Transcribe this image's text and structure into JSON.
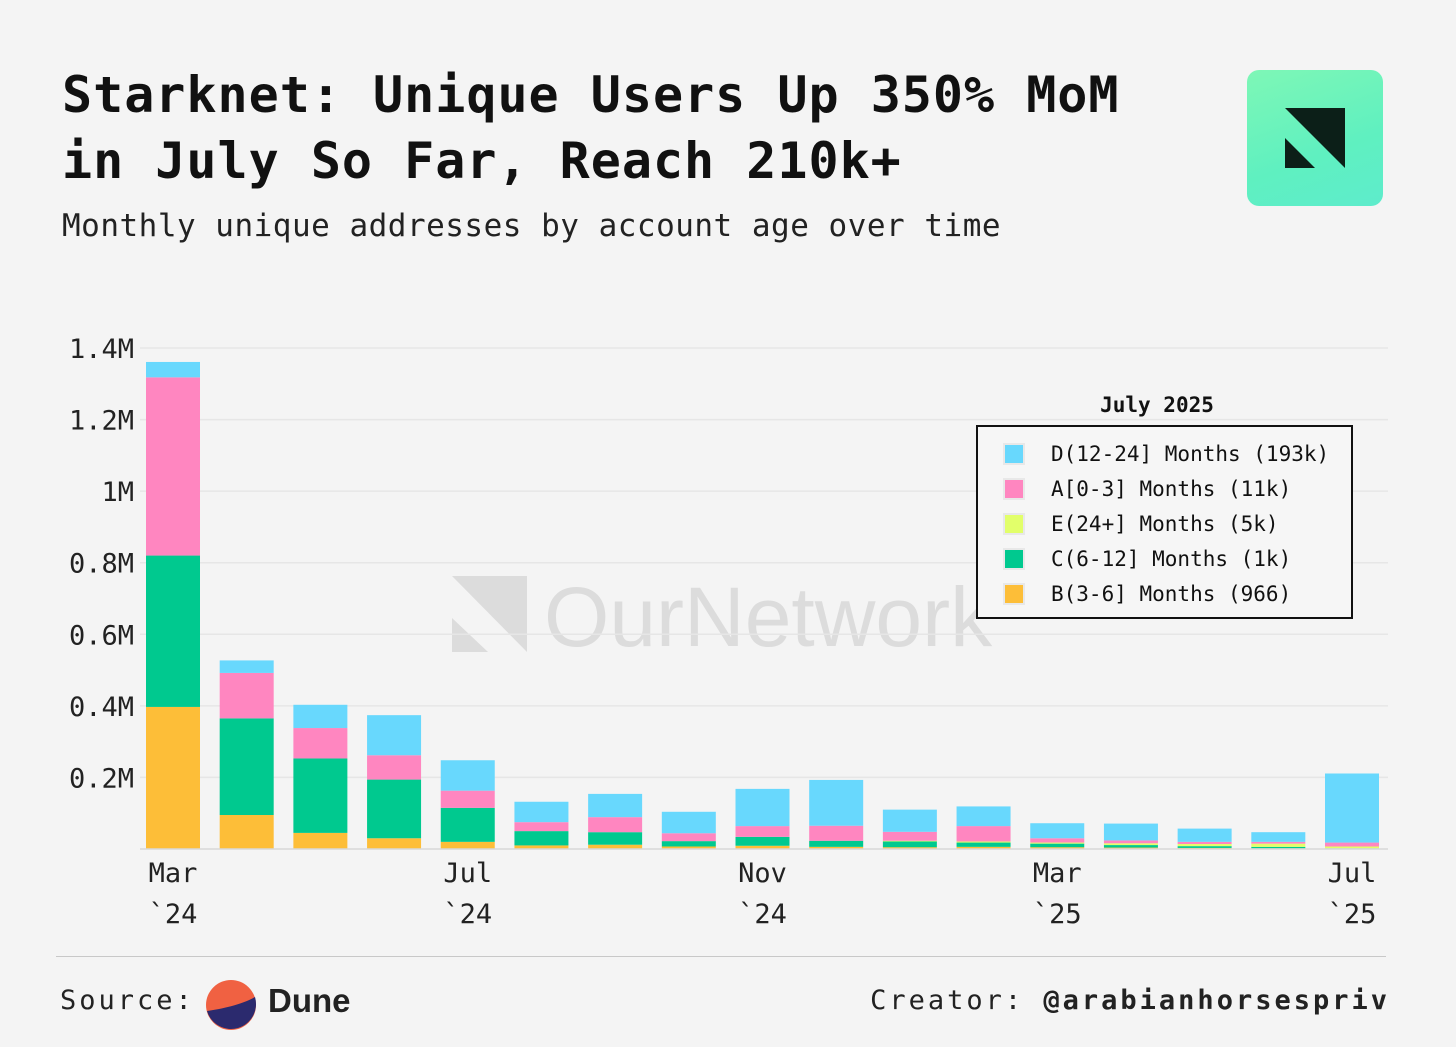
{
  "header": {
    "title_bold": "Starknet:",
    "title_rest": "Unique Users Up 350% MoM in July So Far, Reach 210k+",
    "subtitle": "Monthly unique addresses by account age over time"
  },
  "watermark": "OurNetwork",
  "footer": {
    "source_label": "Source:",
    "source_name": "Dune",
    "creator_label": "Creator:",
    "creator_handle": "@arabianhorsespriv"
  },
  "chart_data": {
    "type": "bar",
    "stacked": true,
    "months": [
      "2024-03",
      "2024-04",
      "2024-05",
      "2024-06",
      "2024-07",
      "2024-08",
      "2024-09",
      "2024-10",
      "2024-11",
      "2024-12",
      "2025-01",
      "2025-02",
      "2025-03",
      "2025-04",
      "2025-05",
      "2025-06",
      "2025-07"
    ],
    "x_tick_labels": [
      {
        "month": "2024-03",
        "line1": "Mar",
        "line2": "`24"
      },
      {
        "month": "2024-07",
        "line1": "Jul",
        "line2": "`24"
      },
      {
        "month": "2024-11",
        "line1": "Nov",
        "line2": "`24"
      },
      {
        "month": "2025-03",
        "line1": "Mar",
        "line2": "`25"
      },
      {
        "month": "2025-07",
        "line1": "Jul",
        "line2": "`25"
      }
    ],
    "y_ticks": [
      {
        "value": 200000,
        "label": "0.2M"
      },
      {
        "value": 400000,
        "label": "0.4M"
      },
      {
        "value": 600000,
        "label": "0.6M"
      },
      {
        "value": 800000,
        "label": "0.8M"
      },
      {
        "value": 1000000,
        "label": "1M"
      },
      {
        "value": 1200000,
        "label": "1.2M"
      },
      {
        "value": 1400000,
        "label": "1.4M"
      }
    ],
    "ylim": [
      0,
      1400000
    ],
    "grid": true,
    "legend": {
      "title": "July 2025",
      "placement": "top-right"
    },
    "series": [
      {
        "name": "B(3-6] Months",
        "legend_label": "B(3-6] Months (966)",
        "color": "#fdbe38",
        "values": [
          397000,
          95000,
          45000,
          30000,
          20000,
          10000,
          12000,
          7000,
          9000,
          6000,
          5000,
          6000,
          5000,
          4000,
          3000,
          2000,
          966
        ]
      },
      {
        "name": "C(6-12] Months",
        "legend_label": "C(6-12] Months (1k)",
        "color": "#00c98f",
        "values": [
          423000,
          270000,
          208000,
          164000,
          95000,
          40000,
          35000,
          15000,
          25000,
          17000,
          16000,
          12000,
          10000,
          7000,
          5000,
          4000,
          1000
        ]
      },
      {
        "name": "E(24+] Months",
        "legend_label": "E(24+] Months (5k)",
        "color": "#e2ff6a",
        "values": [
          0,
          0,
          0,
          0,
          0,
          0,
          0,
          0,
          0,
          0,
          2000,
          3000,
          3000,
          5000,
          6000,
          9000,
          5000
        ]
      },
      {
        "name": "A[0-3] Months",
        "legend_label": "A[0-3] Months (11k)",
        "color": "#ff86c0",
        "values": [
          498000,
          127000,
          85000,
          68000,
          48000,
          25000,
          42000,
          22000,
          30000,
          42000,
          25000,
          43000,
          12000,
          8000,
          6000,
          5000,
          11000
        ]
      },
      {
        "name": "D(12-24] Months",
        "legend_label": "D(12-24] Months (193k)",
        "color": "#68d8fd",
        "values": [
          43000,
          35000,
          65000,
          112000,
          85000,
          57000,
          65000,
          60000,
          104000,
          128000,
          62000,
          55000,
          42000,
          47000,
          37000,
          27000,
          193000
        ]
      }
    ],
    "legend_order": [
      "D(12-24] Months",
      "A[0-3] Months",
      "E(24+] Months",
      "C(6-12] Months",
      "B(3-6] Months"
    ]
  }
}
